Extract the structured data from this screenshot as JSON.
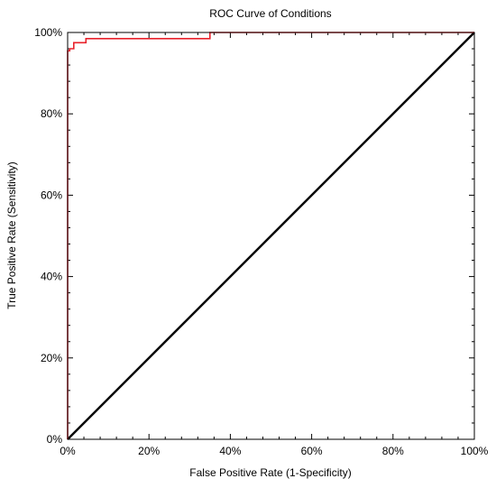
{
  "chart_data": {
    "type": "line",
    "title": "ROC Curve of Conditions",
    "xlabel": "False Positive Rate (1-Specificity)",
    "ylabel": "True Positive Rate (Sensitivity)",
    "xlim": [
      0,
      1
    ],
    "ylim": [
      0,
      1
    ],
    "x_ticks": [
      "0%",
      "20%",
      "40%",
      "60%",
      "80%",
      "100%"
    ],
    "y_ticks": [
      "0%",
      "20%",
      "40%",
      "60%",
      "80%",
      "100%"
    ],
    "grid": false,
    "series": [
      {
        "role": "roc-curve",
        "color": "#e8212b",
        "x": [
          0,
          0,
          0.005,
          0.005,
          0.015,
          0.015,
          0.045,
          0.045,
          0.35,
          0.35,
          1
        ],
        "y": [
          0,
          0.955,
          0.955,
          0.96,
          0.96,
          0.975,
          0.975,
          0.985,
          0.985,
          1,
          1
        ]
      },
      {
        "role": "reference-diagonal",
        "color": "#000000",
        "x": [
          0,
          1
        ],
        "y": [
          0,
          1
        ]
      }
    ]
  }
}
